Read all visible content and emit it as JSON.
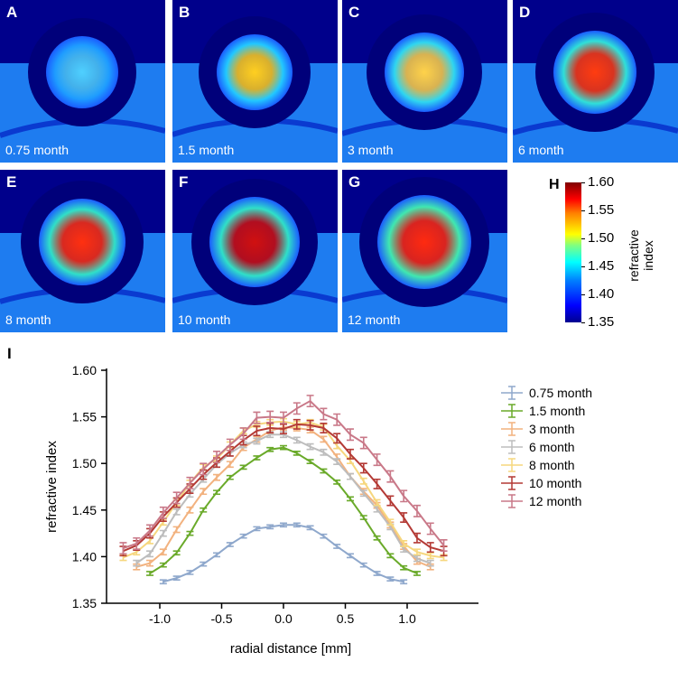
{
  "panels": [
    {
      "label": "A",
      "caption": "0.75 month",
      "core": "#4fd0ff",
      "mid": "#1e9cff"
    },
    {
      "label": "B",
      "caption": "1.5 month",
      "core": "#ffcf20",
      "mid": "#22c8ff"
    },
    {
      "label": "C",
      "caption": "3 month",
      "core": "#ffd24a",
      "mid": "#2fd6f0"
    },
    {
      "label": "D",
      "caption": "6 month",
      "core": "#ff3c10",
      "mid": "#30e0d8"
    },
    {
      "label": "E",
      "caption": "8 month",
      "core": "#ff3010",
      "mid": "#30e0c8"
    },
    {
      "label": "F",
      "caption": "10 month",
      "core": "#d01010",
      "mid": "#30e0c8"
    },
    {
      "label": "G",
      "caption": "12 month",
      "core": "#ff2a10",
      "mid": "#40e8b0"
    }
  ],
  "colorbar": {
    "label": "H",
    "title_line1": "refractive",
    "title_line2": "index",
    "ticks": [
      "1.60",
      "1.55",
      "1.50",
      "1.45",
      "1.40",
      "1.35"
    ],
    "range": [
      1.35,
      1.6
    ]
  },
  "chart_data": {
    "type": "line",
    "panel_label": "I",
    "xlabel": "radial distance [mm]",
    "ylabel": "refractive index",
    "xlim": [
      -1.38,
      1.32
    ],
    "ylim": [
      1.35,
      1.6
    ],
    "xticks": [
      "-1.0",
      "-0.5",
      "0.0",
      "0.5",
      "1.0"
    ],
    "xtick_values": [
      -1.0,
      -0.5,
      0.0,
      0.5,
      1.0
    ],
    "yticks": [
      "1.35",
      "1.40",
      "1.45",
      "1.50",
      "1.55",
      "1.60"
    ],
    "ytick_values": [
      1.35,
      1.4,
      1.45,
      1.5,
      1.55,
      1.6
    ],
    "legend_position": "right",
    "x_step": 0.108,
    "series": [
      {
        "name": "0.75 month",
        "color": "#8fa8cc",
        "kstart": -9,
        "err": 0.002,
        "values": [
          1.373,
          1.377,
          1.383,
          1.392,
          1.402,
          1.413,
          1.422,
          1.43,
          1.432,
          1.434,
          1.434,
          1.431,
          1.422,
          1.411,
          1.401,
          1.391,
          1.382,
          1.376,
          1.373
        ]
      },
      {
        "name": "1.5 month",
        "color": "#6aaa2a",
        "kstart": -10,
        "err": 0.002,
        "values": [
          1.382,
          1.391,
          1.404,
          1.425,
          1.45,
          1.469,
          1.485,
          1.496,
          1.506,
          1.515,
          1.517,
          1.511,
          1.502,
          1.492,
          1.48,
          1.462,
          1.442,
          1.42,
          1.401,
          1.388,
          1.382
        ]
      },
      {
        "name": "3 month",
        "color": "#f2b27f",
        "kstart": -11,
        "err": 0.003,
        "values": [
          1.389,
          1.393,
          1.405,
          1.429,
          1.45,
          1.47,
          1.485,
          1.499,
          1.517,
          1.526,
          1.535,
          1.539,
          1.538,
          1.536,
          1.526,
          1.507,
          1.486,
          1.47,
          1.455,
          1.434,
          1.411,
          1.395,
          1.389
        ]
      },
      {
        "name": "6 month",
        "color": "#bdbdbd",
        "kstart": -11,
        "err": 0.003,
        "values": [
          1.393,
          1.403,
          1.425,
          1.448,
          1.467,
          1.483,
          1.499,
          1.511,
          1.52,
          1.524,
          1.531,
          1.531,
          1.525,
          1.518,
          1.512,
          1.502,
          1.486,
          1.468,
          1.451,
          1.432,
          1.408,
          1.398,
          1.393
        ]
      },
      {
        "name": "8 month",
        "color": "#f6d77e",
        "kstart": -12,
        "err": 0.003,
        "values": [
          1.399,
          1.405,
          1.417,
          1.437,
          1.458,
          1.479,
          1.496,
          1.505,
          1.52,
          1.535,
          1.542,
          1.544,
          1.545,
          1.542,
          1.544,
          1.539,
          1.519,
          1.503,
          1.481,
          1.458,
          1.437,
          1.414,
          1.405,
          1.401,
          1.399
        ]
      },
      {
        "name": "10 month",
        "color": "#b43a35",
        "kstart": -12,
        "err": 0.005,
        "values": [
          1.406,
          1.412,
          1.425,
          1.443,
          1.458,
          1.473,
          1.488,
          1.501,
          1.513,
          1.525,
          1.535,
          1.538,
          1.537,
          1.542,
          1.541,
          1.538,
          1.527,
          1.51,
          1.495,
          1.478,
          1.46,
          1.442,
          1.42,
          1.41,
          1.406
        ]
      },
      {
        "name": "12 month",
        "color": "#c97888",
        "kstart": -12,
        "err": 0.006,
        "values": [
          1.409,
          1.414,
          1.428,
          1.447,
          1.463,
          1.479,
          1.494,
          1.507,
          1.52,
          1.532,
          1.549,
          1.55,
          1.549,
          1.559,
          1.567,
          1.553,
          1.547,
          1.531,
          1.522,
          1.504,
          1.486,
          1.465,
          1.449,
          1.43,
          1.412
        ]
      }
    ]
  }
}
